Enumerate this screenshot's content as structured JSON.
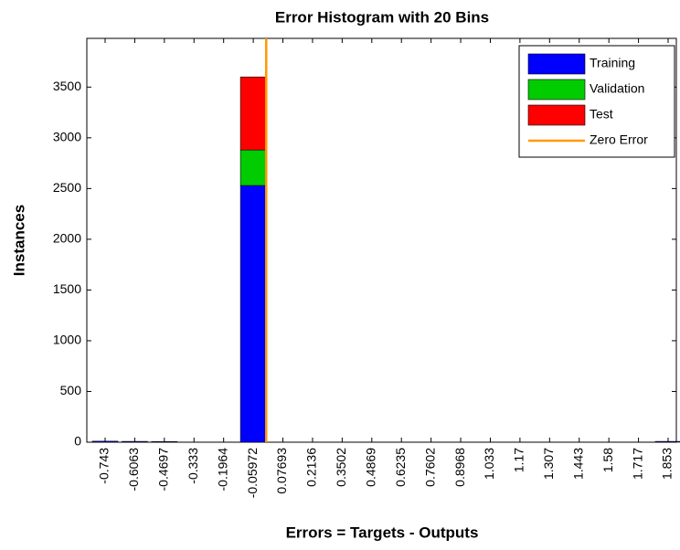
{
  "chart_data": {
    "type": "bar",
    "stacked": true,
    "title": "Error Histogram with 20 Bins",
    "xlabel": "Errors = Targets - Outputs",
    "ylabel": "Instances",
    "x": [
      -0.743,
      -0.6063,
      -0.4697,
      -0.333,
      -0.1964,
      -0.05972,
      0.07693,
      0.2136,
      0.3502,
      0.4869,
      0.6235,
      0.7602,
      0.8968,
      1.033,
      1.17,
      1.307,
      1.443,
      1.58,
      1.717,
      1.853
    ],
    "series": [
      {
        "name": "Training",
        "color": "#0000ff",
        "values": [
          10,
          8,
          6,
          0,
          0,
          2530,
          0,
          0,
          0,
          0,
          0,
          0,
          0,
          0,
          0,
          0,
          0,
          0,
          0,
          8
        ]
      },
      {
        "name": "Validation",
        "color": "#00cc00",
        "values": [
          0,
          0,
          0,
          0,
          0,
          350,
          0,
          0,
          0,
          0,
          0,
          0,
          0,
          0,
          0,
          0,
          0,
          0,
          0,
          0
        ]
      },
      {
        "name": "Test",
        "color": "#ff0000",
        "values": [
          0,
          0,
          0,
          0,
          0,
          720,
          0,
          0,
          0,
          0,
          0,
          0,
          0,
          0,
          0,
          0,
          0,
          0,
          0,
          0
        ]
      }
    ],
    "lines": [
      {
        "name": "Zero Error",
        "color": "#ff9900",
        "x": 0
      }
    ],
    "ylim": [
      0,
      3980
    ],
    "yticks": [
      0,
      500,
      1000,
      1500,
      2000,
      2500,
      3000,
      3500
    ],
    "legend": "upper right"
  }
}
